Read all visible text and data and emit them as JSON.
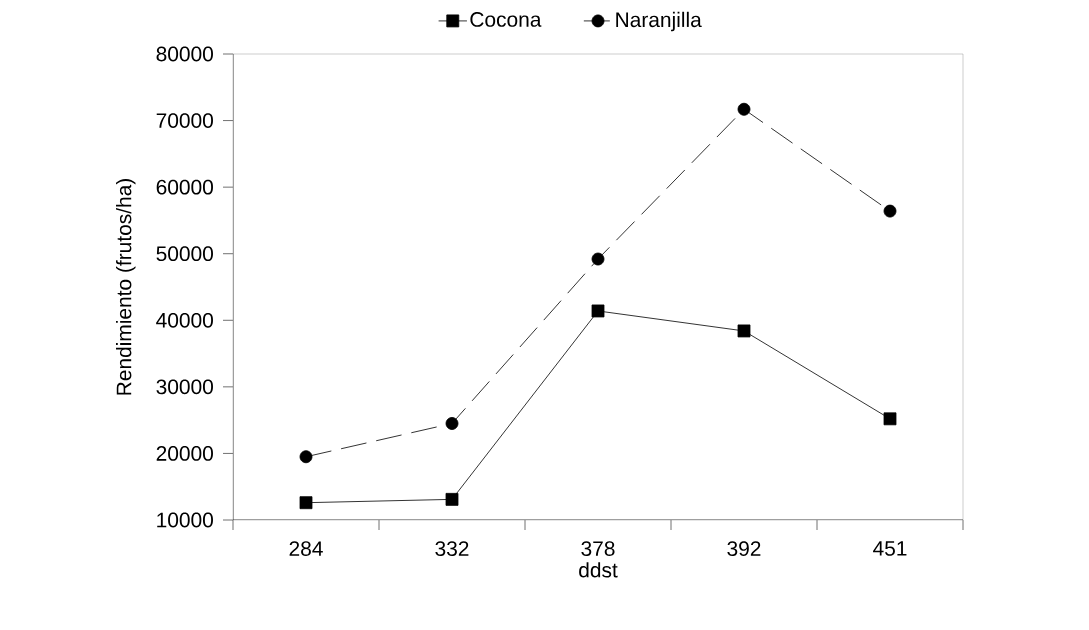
{
  "chart_data": {
    "type": "line",
    "xlabel": "ddst",
    "ylabel": "Rendimiento (frutos/ha)",
    "categories": [
      "284",
      "332",
      "378",
      "392",
      "451"
    ],
    "series": [
      {
        "name": "Cocona",
        "color": "#000000",
        "marker": "square",
        "line_style": "solid",
        "values": [
          12600,
          13100,
          41400,
          38400,
          25200
        ]
      },
      {
        "name": "Naranjilla",
        "color": "#000000",
        "marker": "circle",
        "line_style": "dashed",
        "values": [
          19500,
          24500,
          49200,
          71700,
          56400
        ]
      }
    ],
    "ylim": [
      10000,
      80000
    ],
    "yticks": [
      10000,
      20000,
      30000,
      40000,
      50000,
      60000,
      70000,
      80000
    ],
    "grid": false,
    "legend": "top"
  }
}
